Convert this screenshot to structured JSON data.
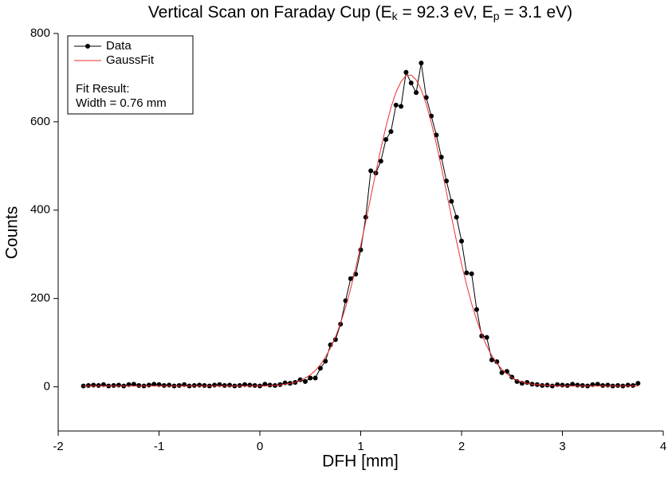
{
  "chart_data": {
    "type": "line",
    "title": [
      "Vertical Scan on Faraday Cup (E",
      "k",
      " = 92.3 eV, E",
      "p",
      " = 3.1 eV)"
    ],
    "x_label": "DFH [mm]",
    "y_label": "Counts",
    "annotation": [
      "Fit Result:",
      "Width = 0.76 mm"
    ],
    "xlim": [
      -2,
      4
    ],
    "xticks": [
      -2,
      -1,
      0,
      1,
      2,
      3,
      4
    ],
    "ylim": [
      -100,
      800
    ],
    "yticks": [
      0,
      200,
      400,
      600,
      800
    ],
    "legend": "top-left",
    "x": [
      -1.75,
      -1.7,
      -1.65,
      -1.6,
      -1.55,
      -1.5,
      -1.45,
      -1.4,
      -1.35,
      -1.3,
      -1.25,
      -1.2,
      -1.15,
      -1.1,
      -1.05,
      -1.0,
      -0.95,
      -0.9,
      -0.85,
      -0.8,
      -0.75,
      -0.7,
      -0.65,
      -0.6,
      -0.55,
      -0.5,
      -0.45,
      -0.4,
      -0.35,
      -0.3,
      -0.25,
      -0.2,
      -0.15,
      -0.1,
      -0.05,
      0.0,
      0.05,
      0.1,
      0.15,
      0.2,
      0.25,
      0.3,
      0.35,
      0.4,
      0.45,
      0.5,
      0.55,
      0.6,
      0.65,
      0.7,
      0.75,
      0.8,
      0.85,
      0.9,
      0.95,
      1.0,
      1.05,
      1.1,
      1.15,
      1.2,
      1.25,
      1.3,
      1.35,
      1.4,
      1.45,
      1.5,
      1.55,
      1.6,
      1.65,
      1.7,
      1.75,
      1.8,
      1.85,
      1.9,
      1.95,
      2.0,
      2.05,
      2.1,
      2.15,
      2.2,
      2.25,
      2.3,
      2.35,
      2.4,
      2.45,
      2.5,
      2.55,
      2.6,
      2.65,
      2.7,
      2.75,
      2.8,
      2.85,
      2.9,
      2.95,
      3.0,
      3.05,
      3.1,
      3.15,
      3.2,
      3.25,
      3.3,
      3.35,
      3.4,
      3.45,
      3.5,
      3.55,
      3.6,
      3.65,
      3.7,
      3.75
    ],
    "series": [
      {
        "name": "Data",
        "color": "#000000",
        "markers": true,
        "values": [
          2,
          3,
          4,
          3,
          5,
          2,
          3,
          4,
          2,
          5,
          6,
          3,
          2,
          4,
          6,
          5,
          3,
          4,
          2,
          3,
          5,
          2,
          3,
          4,
          3,
          2,
          4,
          5,
          3,
          4,
          2,
          3,
          5,
          4,
          3,
          2,
          6,
          4,
          3,
          5,
          9,
          8,
          10,
          16,
          12,
          20,
          20,
          42,
          58,
          95,
          107,
          142,
          195,
          245,
          255,
          310,
          384,
          489,
          484,
          511,
          560,
          578,
          638,
          635,
          712,
          688,
          666,
          733,
          655,
          613,
          570,
          520,
          466,
          420,
          384,
          330,
          258,
          256,
          175,
          115,
          112,
          61,
          57,
          32,
          35,
          22,
          12,
          8,
          10,
          6,
          5,
          3,
          4,
          2,
          5,
          4,
          3,
          6,
          4,
          3,
          2,
          5,
          6,
          3,
          4,
          2,
          3,
          2,
          4,
          3,
          8
        ]
      },
      {
        "name": "GaussFit",
        "color": "#e8322f",
        "markers": false,
        "values": [
          2,
          2,
          2,
          2,
          2,
          2,
          2,
          2,
          2,
          2,
          2,
          2,
          2,
          2,
          2,
          2,
          2,
          2,
          2,
          2,
          2,
          2,
          2,
          2,
          2,
          2,
          2,
          2,
          2,
          2,
          2,
          2,
          2,
          2,
          2,
          2,
          2,
          3,
          3,
          4,
          6,
          8,
          10,
          14,
          20,
          27,
          37,
          50,
          67,
          88,
          113,
          144,
          180,
          222,
          269,
          320,
          374,
          430,
          486,
          539,
          589,
          632,
          667,
          691,
          705,
          706,
          695,
          673,
          640,
          598,
          550,
          497,
          441,
          385,
          330,
          278,
          231,
          188,
          151,
          119,
          92,
          71,
          53,
          40,
          29,
          21,
          15,
          11,
          8,
          6,
          5,
          4,
          3,
          3,
          2,
          2,
          2,
          2,
          2,
          2,
          2,
          2,
          2,
          2,
          2,
          2,
          2,
          2,
          2,
          2,
          2
        ]
      }
    ]
  }
}
